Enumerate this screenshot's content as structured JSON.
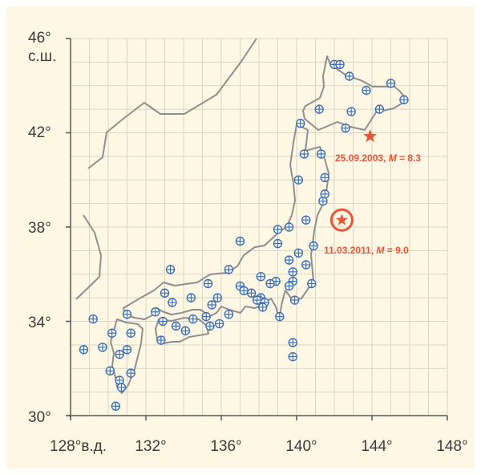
{
  "map": {
    "lat_range": [
      30,
      46
    ],
    "lon_range": [
      128,
      148
    ],
    "y_ticks": [
      {
        "value": 46,
        "label": "46°"
      },
      {
        "value": 42,
        "label": "42°"
      },
      {
        "value": 38,
        "label": "38°"
      },
      {
        "value": 34,
        "label": "34°"
      },
      {
        "value": 30,
        "label": "30°"
      }
    ],
    "y_unit_label": "с.ш.",
    "x_ticks": [
      {
        "value": 128,
        "label": "128°"
      },
      {
        "value": 132,
        "label": "132°"
      },
      {
        "value": 136,
        "label": "136°"
      },
      {
        "value": 140,
        "label": "140°"
      },
      {
        "value": 144,
        "label": "144°"
      },
      {
        "value": 148,
        "label": "148°"
      }
    ],
    "x_unit_label": "в.д.",
    "grid": true,
    "colors": {
      "background": "#fdf7e4",
      "grid": "#d9d4c3",
      "coast": "#8f8f8f",
      "station": "#3d6fb0",
      "earthquake": "#e8553a"
    }
  },
  "earthquakes": [
    {
      "date": "25.09.2003",
      "magnitude_symbol": "M",
      "magnitude": "8.3",
      "lat": 41.85,
      "lon": 143.9,
      "marker": "star"
    },
    {
      "date": "11.03.2011",
      "magnitude_symbol": "M",
      "magnitude": "9.0",
      "lat": 38.3,
      "lon": 142.4,
      "marker": "circled-star"
    }
  ],
  "stations": [
    [
      44.9,
      142.0
    ],
    [
      44.9,
      142.3
    ],
    [
      44.4,
      142.8
    ],
    [
      43.8,
      143.7
    ],
    [
      44.1,
      145.0
    ],
    [
      43.4,
      145.7
    ],
    [
      43.0,
      141.2
    ],
    [
      43.0,
      144.4
    ],
    [
      42.9,
      142.9
    ],
    [
      42.2,
      142.6
    ],
    [
      42.4,
      140.2
    ],
    [
      41.1,
      140.4
    ],
    [
      41.1,
      141.3
    ],
    [
      40.1,
      141.5
    ],
    [
      40.0,
      140.1
    ],
    [
      39.4,
      141.5
    ],
    [
      39.1,
      141.4
    ],
    [
      38.3,
      140.5
    ],
    [
      38.0,
      139.6
    ],
    [
      37.9,
      139.0
    ],
    [
      37.4,
      137.0
    ],
    [
      37.3,
      139.0
    ],
    [
      37.2,
      140.9
    ],
    [
      36.9,
      140.1
    ],
    [
      36.6,
      139.6
    ],
    [
      36.4,
      140.5
    ],
    [
      36.2,
      136.4
    ],
    [
      36.2,
      133.3
    ],
    [
      36.1,
      139.8
    ],
    [
      35.9,
      138.1
    ],
    [
      35.7,
      139.8
    ],
    [
      35.7,
      138.9
    ],
    [
      35.6,
      140.8
    ],
    [
      35.6,
      138.6
    ],
    [
      35.5,
      139.6
    ],
    [
      35.6,
      135.3
    ],
    [
      35.5,
      137.0
    ],
    [
      35.3,
      137.2
    ],
    [
      35.2,
      137.6
    ],
    [
      35.2,
      133.0
    ],
    [
      35.0,
      135.8
    ],
    [
      35.0,
      138.1
    ],
    [
      35.0,
      134.4
    ],
    [
      34.9,
      138.0
    ],
    [
      34.9,
      137.9
    ],
    [
      34.9,
      139.9
    ],
    [
      34.8,
      138.3
    ],
    [
      34.8,
      133.4
    ],
    [
      34.7,
      135.5
    ],
    [
      34.6,
      138.2
    ],
    [
      34.4,
      132.5
    ],
    [
      34.3,
      136.4
    ],
    [
      34.3,
      131.0
    ],
    [
      34.2,
      135.2
    ],
    [
      34.2,
      139.1
    ],
    [
      34.1,
      134.5
    ],
    [
      34.1,
      129.2
    ],
    [
      34.0,
      132.9
    ],
    [
      33.9,
      135.9
    ],
    [
      33.8,
      135.4
    ],
    [
      33.8,
      133.6
    ],
    [
      33.6,
      134.1
    ],
    [
      33.5,
      130.2
    ],
    [
      33.5,
      131.2
    ],
    [
      33.2,
      132.8
    ],
    [
      33.1,
      139.8
    ],
    [
      32.9,
      129.7
    ],
    [
      32.8,
      128.7
    ],
    [
      32.8,
      131.0
    ],
    [
      32.6,
      130.6
    ],
    [
      32.5,
      139.8
    ],
    [
      31.9,
      130.1
    ],
    [
      31.8,
      131.2
    ],
    [
      31.5,
      130.6
    ],
    [
      31.2,
      130.7
    ],
    [
      30.4,
      130.4
    ]
  ]
}
